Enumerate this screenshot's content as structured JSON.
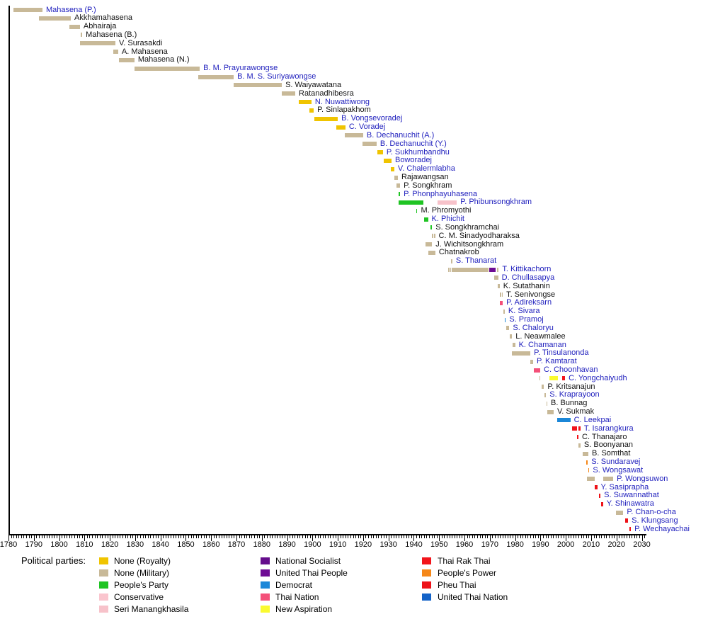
{
  "legend": {
    "title": "Political parties:",
    "columns": [
      [
        {
          "label": "None (Royalty)",
          "party": "royalty"
        },
        {
          "label": "None (Military)",
          "party": "military"
        },
        {
          "label": "People's Party",
          "party": "peoples_party"
        },
        {
          "label": "Conservative",
          "party": "conservative"
        },
        {
          "label": "Seri Manangkhasila",
          "party": "seri_manangkhasila"
        }
      ],
      [
        {
          "label": "National Socialist",
          "party": "national_socialist"
        },
        {
          "label": "United Thai People",
          "party": "united_thai_people"
        },
        {
          "label": "Democrat",
          "party": "democrat"
        },
        {
          "label": "Thai Nation",
          "party": "thai_nation"
        },
        {
          "label": "New Aspiration",
          "party": "new_aspiration"
        }
      ],
      [
        {
          "label": "Thai Rak Thai",
          "party": "thai_rak_thai"
        },
        {
          "label": "People's Power",
          "party": "peoples_power"
        },
        {
          "label": "Pheu Thai",
          "party": "pheu_thai"
        },
        {
          "label": "United Thai Nation",
          "party": "united_thai_nation"
        }
      ]
    ]
  },
  "party_colors": {
    "royalty": "#F0C400",
    "military": "#C8B998",
    "peoples_party": "#1FC423",
    "conservative": "#FAC5CE",
    "seri_manangkhasila": "#F7C2CA",
    "national_socialist": "#650D8C",
    "united_thai_people": "#6E0C94",
    "democrat": "#1B87D8",
    "thai_nation": "#F45079",
    "new_aspiration": "#FAFA30",
    "thai_rak_thai": "#F2141B",
    "peoples_power": "#F58718",
    "pheu_thai": "#EE1218",
    "united_thai_nation": "#1463C8"
  },
  "link_color": "#2222BE",
  "chart_data": {
    "type": "timeline",
    "title": "",
    "x_axis": {
      "unit": "year",
      "min": 1780,
      "max": 2030,
      "major_step": 10,
      "minor_step": 1,
      "tick_labels": [
        "1780",
        "1790",
        "1800",
        "1810",
        "1820",
        "1830",
        "1840",
        "1850",
        "1860",
        "1870",
        "1880",
        "1890",
        "1900",
        "1910",
        "1920",
        "1930",
        "1940",
        "1950",
        "1960",
        "1970",
        "1980",
        "1990",
        "2000",
        "2010",
        "2020",
        "2030"
      ]
    },
    "people": [
      {
        "name": "Mahasena (P.)",
        "link": true,
        "segments": [
          [
            1782,
            1793.4,
            "military"
          ]
        ]
      },
      {
        "name": "Akkhamahasena",
        "link": false,
        "segments": [
          [
            1792,
            1804.6,
            "military"
          ]
        ]
      },
      {
        "name": "Abhairaja",
        "link": false,
        "segments": [
          [
            1804,
            1808.2,
            "military"
          ]
        ]
      },
      {
        "name": "Mahasena (B.)",
        "link": false,
        "segments": [
          [
            1808.5,
            1809.1,
            "military"
          ]
        ]
      },
      {
        "name": "V. Surasakdi",
        "link": false,
        "segments": [
          [
            1808.2,
            1822.2,
            "military"
          ]
        ]
      },
      {
        "name": "A. Mahasena",
        "link": false,
        "segments": [
          [
            1821.4,
            1823.3,
            "military"
          ]
        ]
      },
      {
        "name": "Mahasena (N.)",
        "link": false,
        "segments": [
          [
            1823.6,
            1829.7,
            "military"
          ]
        ]
      },
      {
        "name": "B. M. Prayurawongse",
        "link": true,
        "segments": [
          [
            1829.7,
            1855.5,
            "military"
          ]
        ]
      },
      {
        "name": "B. M. S. Suriyawongse",
        "link": true,
        "segments": [
          [
            1854.9,
            1868.9,
            "military"
          ]
        ]
      },
      {
        "name": "S. Waiyawatana",
        "link": false,
        "segments": [
          [
            1868.9,
            1887.9,
            "military"
          ]
        ]
      },
      {
        "name": "Ratanadhibesra",
        "link": false,
        "segments": [
          [
            1887.9,
            1893.2,
            "military"
          ]
        ]
      },
      {
        "name": "N. Nuwattiwong",
        "link": true,
        "segments": [
          [
            1894.6,
            1899.6,
            "royalty"
          ]
        ]
      },
      {
        "name": "P. Sinlapakhom",
        "link": false,
        "segments": [
          [
            1898.8,
            1900.5,
            "royalty"
          ]
        ]
      },
      {
        "name": "B. Vongsevoradej",
        "link": true,
        "segments": [
          [
            1900.7,
            1910,
            "royalty"
          ]
        ]
      },
      {
        "name": "C. Voradej",
        "link": true,
        "segments": [
          [
            1909.4,
            1913,
            "royalty"
          ]
        ]
      },
      {
        "name": "B. Dechanuchit (A.)",
        "link": true,
        "segments": [
          [
            1912.8,
            1920,
            "military"
          ]
        ]
      },
      {
        "name": "B. Dechanuchit (Y.)",
        "link": true,
        "segments": [
          [
            1919.7,
            1925.3,
            "military"
          ]
        ]
      },
      {
        "name": "P. Sukhumbandhu",
        "link": true,
        "segments": [
          [
            1925.6,
            1927.8,
            "royalty"
          ]
        ]
      },
      {
        "name": "Boworadej",
        "link": true,
        "segments": [
          [
            1928.1,
            1931.2,
            "royalty"
          ]
        ]
      },
      {
        "name": "V. Chalermlabha",
        "link": true,
        "segments": [
          [
            1930.9,
            1932.3,
            "royalty"
          ]
        ]
      },
      {
        "name": "Rajawangsan",
        "link": false,
        "segments": [
          [
            1932.3,
            1933.7,
            "military"
          ]
        ]
      },
      {
        "name": "P. Songkhram",
        "link": false,
        "segments": [
          [
            1933.2,
            1934.6,
            "military"
          ]
        ]
      },
      {
        "name": "P. Phonphayuhasena",
        "link": true,
        "segments": [
          [
            1934,
            1934.6,
            "peoples_party"
          ]
        ]
      },
      {
        "name": "P. Phibunsongkhram",
        "link": true,
        "segments": [
          [
            1934,
            1943.8,
            "peoples_party"
          ],
          [
            1949.4,
            1957,
            "seri_manangkhasila"
          ]
        ]
      },
      {
        "name": "M. Phromyothi",
        "link": false,
        "segments": [
          [
            1941,
            1941.4,
            "peoples_party"
          ]
        ]
      },
      {
        "name": "K. Phichit",
        "link": true,
        "segments": [
          [
            1944.1,
            1945.6,
            "peoples_party"
          ]
        ]
      },
      {
        "name": "S. Songkhramchai",
        "link": false,
        "segments": [
          [
            1946.6,
            1947.2,
            "peoples_party"
          ]
        ]
      },
      {
        "name": "C. M. Sinadyodharaksa",
        "link": false,
        "segments": [
          [
            1947.2,
            1947.6,
            "military"
          ],
          [
            1948,
            1948.4,
            "military"
          ]
        ]
      },
      {
        "name": "J. Wichitsongkhram",
        "link": false,
        "segments": [
          [
            1944.6,
            1947.2,
            "military"
          ]
        ]
      },
      {
        "name": "Chatnakrob",
        "link": false,
        "segments": [
          [
            1945.7,
            1948.5,
            "military"
          ]
        ]
      },
      {
        "name": "S. Thanarat",
        "link": true,
        "segments": [
          [
            1954.7,
            1955.2,
            "military"
          ]
        ]
      },
      {
        "name": "T. Kittikachorn",
        "link": true,
        "segments": [
          [
            1953.6,
            1954,
            "military"
          ],
          [
            1954.3,
            1954.7,
            "military"
          ],
          [
            1955,
            1969.5,
            "military"
          ],
          [
            1969.8,
            1972.3,
            "united_thai_people"
          ],
          [
            1972.9,
            1973.5,
            "military"
          ]
        ]
      },
      {
        "name": "D. Chullasapya",
        "link": true,
        "segments": [
          [
            1971.8,
            1973.3,
            "military"
          ]
        ]
      },
      {
        "name": "K. Sutathanin",
        "link": false,
        "segments": [
          [
            1973,
            1973.9,
            "military"
          ]
        ]
      },
      {
        "name": "T. Senivongse",
        "link": false,
        "segments": [
          [
            1974.1,
            1974.4,
            "military"
          ],
          [
            1974.7,
            1975.1,
            "military"
          ]
        ]
      },
      {
        "name": "P. Adireksarn",
        "link": true,
        "segments": [
          [
            1973.9,
            1975.1,
            "thai_nation"
          ]
        ]
      },
      {
        "name": "K. Sivara",
        "link": true,
        "segments": [
          [
            1975.5,
            1975.9,
            "military"
          ]
        ]
      },
      {
        "name": "S. Pramoj",
        "link": true,
        "segments": [
          [
            1975.9,
            1976.3,
            "democrat"
          ]
        ]
      },
      {
        "name": "S. Chaloryu",
        "link": true,
        "segments": [
          [
            1976.5,
            1977.7,
            "military"
          ]
        ]
      },
      {
        "name": "L. Neawmalee",
        "link": false,
        "segments": [
          [
            1977.9,
            1978.8,
            "military"
          ]
        ]
      },
      {
        "name": "K. Chamanan",
        "link": true,
        "segments": [
          [
            1979.1,
            1980,
            "military"
          ]
        ]
      },
      {
        "name": "P. Tinsulanonda",
        "link": true,
        "segments": [
          [
            1978.7,
            1986,
            "military"
          ]
        ]
      },
      {
        "name": "P. Kamtarat",
        "link": true,
        "segments": [
          [
            1986,
            1987.1,
            "military"
          ]
        ]
      },
      {
        "name": "C. Choonhavan",
        "link": true,
        "segments": [
          [
            1987.5,
            1989.9,
            "thai_nation"
          ]
        ]
      },
      {
        "name": "C. Yongchaiyudh",
        "link": true,
        "segments": [
          [
            1989.5,
            1990,
            "military"
          ],
          [
            1993.6,
            1996.9,
            "new_aspiration"
          ],
          [
            1998.6,
            1999.7,
            "thai_rak_thai"
          ]
        ]
      },
      {
        "name": "P. Kritsanajun",
        "link": false,
        "segments": [
          [
            1990.4,
            1991.4,
            "military"
          ]
        ]
      },
      {
        "name": "S. Kraprayoon",
        "link": true,
        "segments": [
          [
            1991.7,
            1992.2,
            "military"
          ]
        ]
      },
      {
        "name": "B. Bunnag",
        "link": false,
        "segments": [
          [
            1992.3,
            1992.7,
            "military"
          ]
        ]
      },
      {
        "name": "V. Sukmak",
        "link": false,
        "segments": [
          [
            1992.8,
            1995.2,
            "military"
          ]
        ]
      },
      {
        "name": "C. Leekpai",
        "link": true,
        "segments": [
          [
            1996.5,
            2001.8,
            "democrat"
          ]
        ]
      },
      {
        "name": "T. Isarangkura",
        "link": true,
        "segments": [
          [
            2002.5,
            2004.4,
            "thai_rak_thai"
          ],
          [
            2004.9,
            2005.8,
            "thai_rak_thai"
          ]
        ]
      },
      {
        "name": "C. Thanajaro",
        "link": false,
        "segments": [
          [
            2004.5,
            2005,
            "thai_rak_thai"
          ]
        ]
      },
      {
        "name": "S. Boonyanan",
        "link": false,
        "segments": [
          [
            2005.1,
            2005.8,
            "military"
          ]
        ]
      },
      {
        "name": "B. Somthat",
        "link": false,
        "segments": [
          [
            2006.6,
            2008.9,
            "military"
          ]
        ]
      },
      {
        "name": "S. Sundaravej",
        "link": true,
        "segments": [
          [
            2008.2,
            2008.7,
            "peoples_power"
          ]
        ]
      },
      {
        "name": "S. Wongsawat",
        "link": true,
        "segments": [
          [
            2008.8,
            2009.3,
            "peoples_power"
          ]
        ]
      },
      {
        "name": "P. Wongsuwon",
        "link": true,
        "segments": [
          [
            2008.3,
            2011.5,
            "military"
          ],
          [
            2014.7,
            2018.7,
            "military"
          ]
        ]
      },
      {
        "name": "Y. Sasiprapha",
        "link": true,
        "segments": [
          [
            2011.5,
            2012.4,
            "pheu_thai"
          ]
        ]
      },
      {
        "name": "S. Suwannathat",
        "link": true,
        "segments": [
          [
            2013.1,
            2013.7,
            "pheu_thai"
          ]
        ]
      },
      {
        "name": "Y. Shinawatra",
        "link": true,
        "segments": [
          [
            2013.9,
            2014.7,
            "pheu_thai"
          ]
        ]
      },
      {
        "name": "P. Chan-o-cha",
        "link": true,
        "segments": [
          [
            2019.7,
            2022.7,
            "military"
          ]
        ]
      },
      {
        "name": "S. Klungsang",
        "link": true,
        "segments": [
          [
            2023.5,
            2024.6,
            "pheu_thai"
          ]
        ]
      },
      {
        "name": "P. Wechayachai",
        "link": true,
        "segments": [
          [
            2025.1,
            2025.7,
            "pheu_thai"
          ]
        ]
      }
    ]
  }
}
